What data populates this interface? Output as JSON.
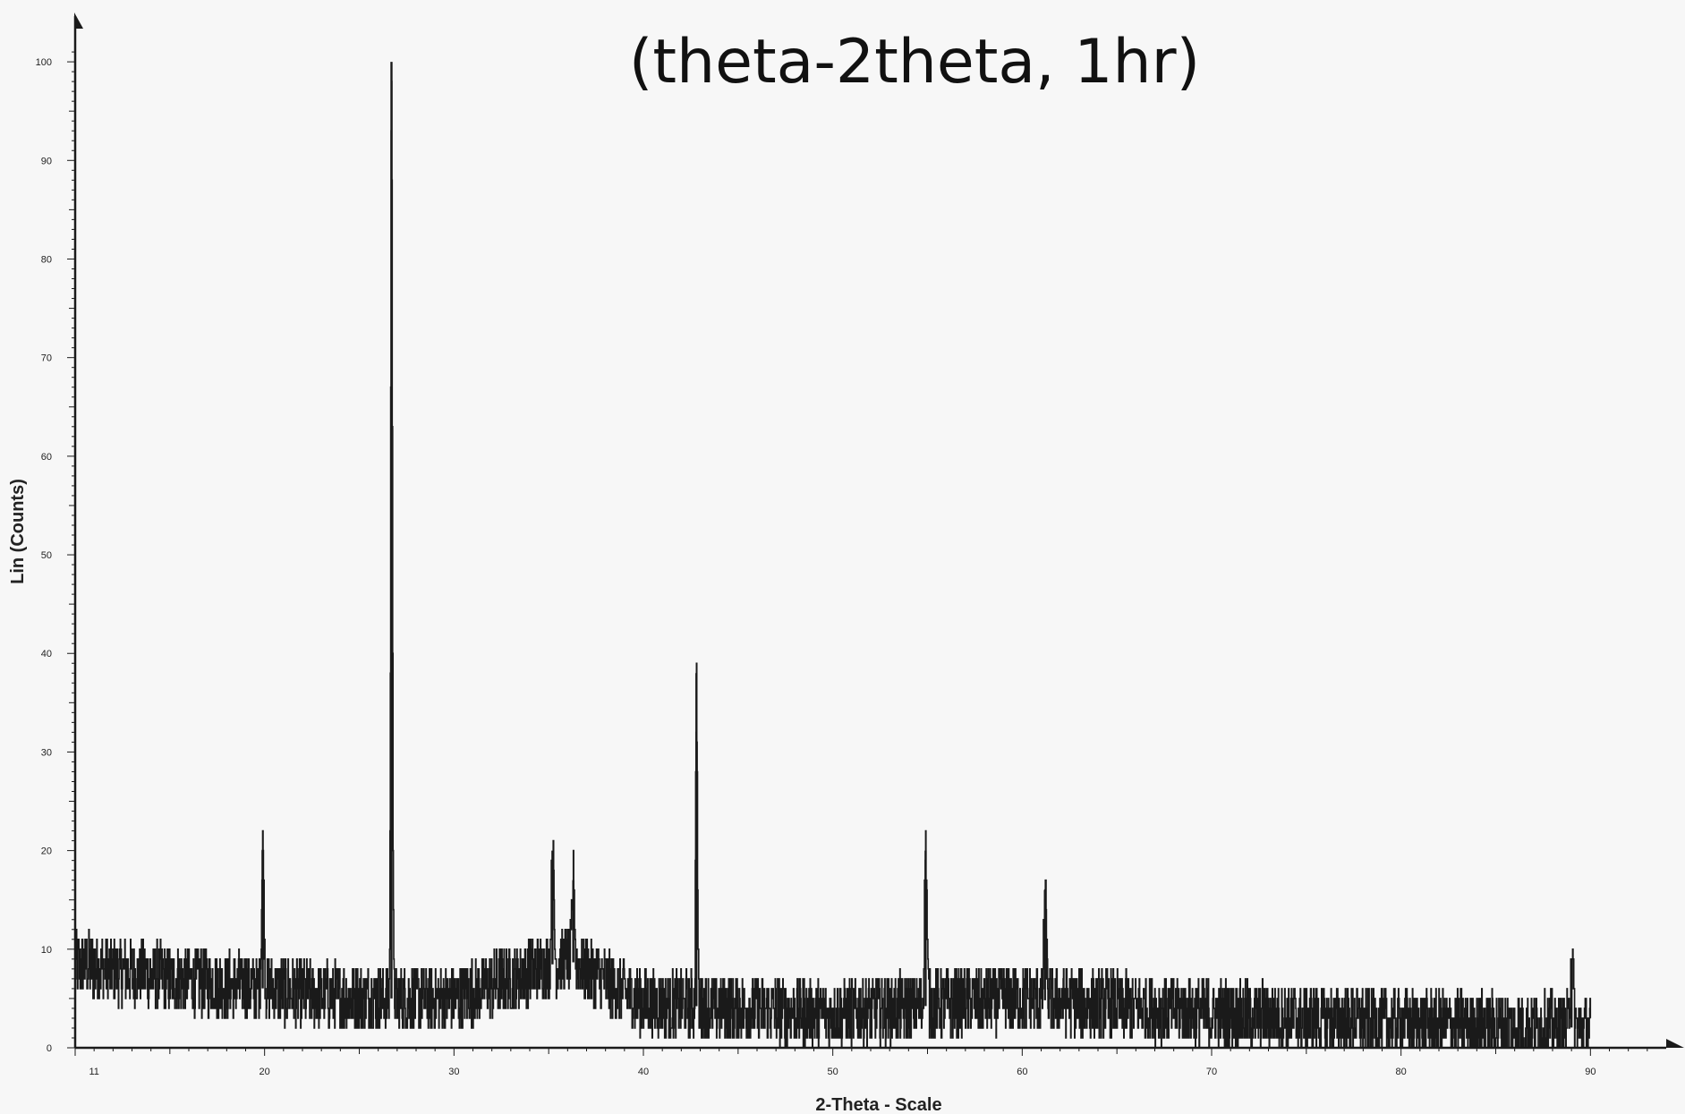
{
  "chart_data": {
    "type": "line",
    "title": "(theta-2theta, 1hr)",
    "xlabel": "2-Theta - Scale",
    "ylabel": "Lin (Counts)",
    "xlim": [
      10,
      94
    ],
    "ylim": [
      0,
      105
    ],
    "xticks": [
      11,
      20,
      30,
      40,
      50,
      60,
      70,
      80,
      90
    ],
    "yticks": [
      0,
      10,
      20,
      30,
      40,
      50,
      60,
      70,
      80,
      90,
      100
    ],
    "grid": false,
    "line_color": "#1a1a1a",
    "background": "#f7f7f7",
    "series": [
      {
        "x_range": [
          10,
          90
        ],
        "peaks": [
          {
            "x": 19.9,
            "y": 20
          },
          {
            "x": 26.7,
            "y": 100
          },
          {
            "x": 35.2,
            "y": 20
          },
          {
            "x": 36.3,
            "y": 17
          },
          {
            "x": 42.8,
            "y": 38
          },
          {
            "x": 54.9,
            "y": 20
          },
          {
            "x": 61.2,
            "y": 16
          },
          {
            "x": 89.0,
            "y": 9
          }
        ],
        "background_level": [
          {
            "x": 10,
            "y": 8.5
          },
          {
            "x": 15,
            "y": 7
          },
          {
            "x": 20,
            "y": 6
          },
          {
            "x": 25,
            "y": 5
          },
          {
            "x": 30,
            "y": 5
          },
          {
            "x": 36,
            "y": 9
          },
          {
            "x": 40,
            "y": 4.5
          },
          {
            "x": 50,
            "y": 3.5
          },
          {
            "x": 60,
            "y": 5
          },
          {
            "x": 70,
            "y": 3.5
          },
          {
            "x": 80,
            "y": 2.5
          },
          {
            "x": 90,
            "y": 2
          }
        ],
        "noise_amplitude": 3.5
      }
    ]
  }
}
